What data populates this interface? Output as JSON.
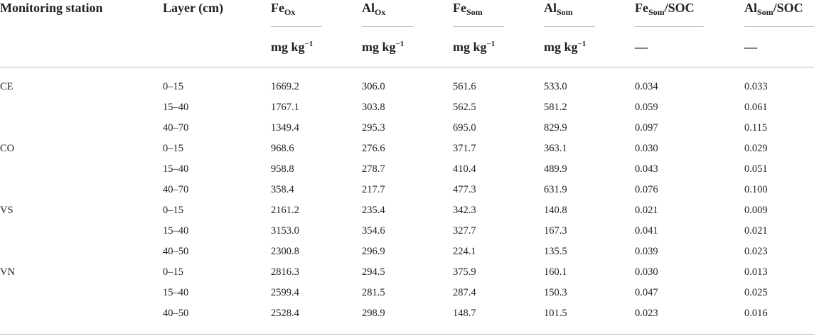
{
  "table": {
    "header": [
      {
        "base": "Monitoring station"
      },
      {
        "base": "Layer (cm)"
      },
      {
        "base": "Fe",
        "sub": "Ox"
      },
      {
        "base": "Al",
        "sub": "Ox"
      },
      {
        "base": "Fe",
        "sub": "Som"
      },
      {
        "base": "Al",
        "sub": "Som"
      },
      {
        "base": "Fe",
        "sub": "Som",
        "rest": "/SOC"
      },
      {
        "base": "Al",
        "sub": "Som",
        "rest": "/SOC"
      }
    ],
    "units": [
      null,
      null,
      {
        "text": "mg kg",
        "sup": "−1"
      },
      {
        "text": "mg kg",
        "sup": "−1"
      },
      {
        "text": "mg kg",
        "sup": "−1"
      },
      {
        "text": "mg kg",
        "sup": "−1"
      },
      {
        "text": "—"
      },
      {
        "text": "—"
      }
    ],
    "stations": [
      {
        "name": "CE",
        "rows": [
          [
            "0–15",
            "1669.2",
            "306.0",
            "561.6",
            "533.0",
            "0.034",
            "0.033"
          ],
          [
            "15–40",
            "1767.1",
            "303.8",
            "562.5",
            "581.2",
            "0.059",
            "0.061"
          ],
          [
            "40–70",
            "1349.4",
            "295.3",
            "695.0",
            "829.9",
            "0.097",
            "0.115"
          ]
        ]
      },
      {
        "name": "CO",
        "rows": [
          [
            "0–15",
            "968.6",
            "276.6",
            "371.7",
            "363.1",
            "0.030",
            "0.029"
          ],
          [
            "15–40",
            "958.8",
            "278.7",
            "410.4",
            "489.9",
            "0.043",
            "0.051"
          ],
          [
            "40–70",
            "358.4",
            "217.7",
            "477.3",
            "631.9",
            "0.076",
            "0.100"
          ]
        ]
      },
      {
        "name": "VS",
        "rows": [
          [
            "0–15",
            "2161.2",
            "235.4",
            "342.3",
            "140.8",
            "0.021",
            "0.009"
          ],
          [
            "15–40",
            "3153.0",
            "354.6",
            "327.7",
            "167.3",
            "0.041",
            "0.021"
          ],
          [
            "40–50",
            "2300.8",
            "296.9",
            "224.1",
            "135.5",
            "0.039",
            "0.023"
          ]
        ]
      },
      {
        "name": "VN",
        "rows": [
          [
            "0–15",
            "2816.3",
            "294.5",
            "375.9",
            "160.1",
            "0.030",
            "0.013"
          ],
          [
            "15–40",
            "2599.4",
            "281.5",
            "287.4",
            "150.3",
            "0.047",
            "0.025"
          ],
          [
            "40–50",
            "2528.4",
            "298.9",
            "148.7",
            "101.5",
            "0.023",
            "0.016"
          ]
        ]
      }
    ]
  }
}
